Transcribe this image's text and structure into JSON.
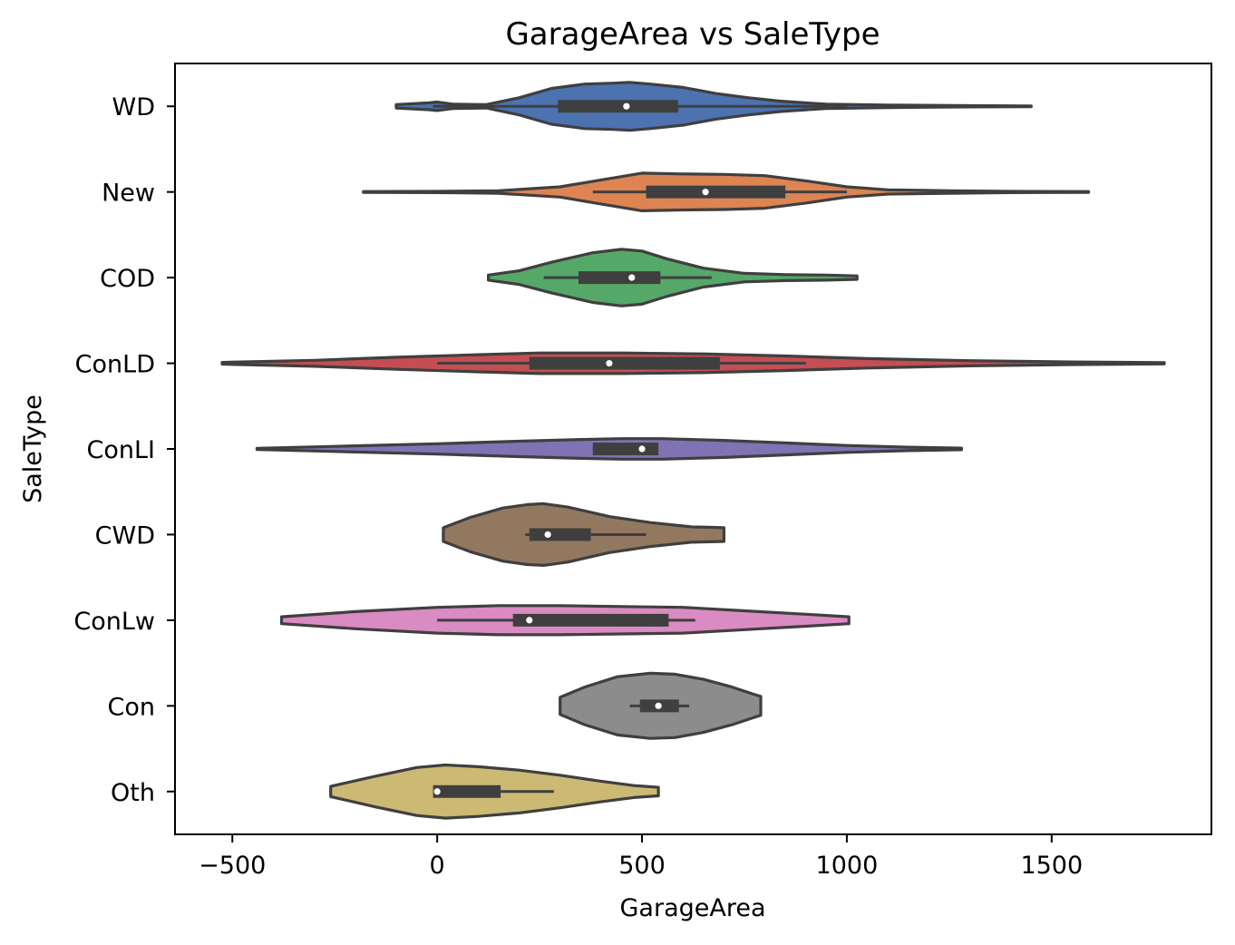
{
  "chart_data": {
    "type": "violin",
    "orientation": "horizontal",
    "title": "GarageArea vs SaleType",
    "xlabel": "GarageArea",
    "ylabel": "SaleType",
    "xlim": [
      -640,
      1890
    ],
    "xticks": [
      -500,
      0,
      500,
      1000,
      1500
    ],
    "xtick_labels": [
      "−500",
      "0",
      "500",
      "1000",
      "1500"
    ],
    "grid": false,
    "categories": [
      "WD",
      "New",
      "COD",
      "ConLD",
      "ConLI",
      "CWD",
      "ConLw",
      "Con",
      "Oth"
    ],
    "series": [
      {
        "category": "WD",
        "color": "#4c72b0",
        "range": [
          -100,
          1450
        ],
        "whiskers": [
          -10,
          1000
        ],
        "q1": 295,
        "median": 462,
        "q3": 588,
        "density": [
          [
            -100,
            0.04
          ],
          [
            -20,
            0.08
          ],
          [
            0,
            0.1
          ],
          [
            40,
            0.05
          ],
          [
            120,
            0.04
          ],
          [
            200,
            0.2
          ],
          [
            280,
            0.42
          ],
          [
            360,
            0.52
          ],
          [
            430,
            0.54
          ],
          [
            470,
            0.56
          ],
          [
            520,
            0.52
          ],
          [
            600,
            0.44
          ],
          [
            680,
            0.3
          ],
          [
            760,
            0.2
          ],
          [
            840,
            0.12
          ],
          [
            950,
            0.05
          ],
          [
            1100,
            0.03
          ],
          [
            1300,
            0.015
          ],
          [
            1450,
            0.01
          ]
        ]
      },
      {
        "category": "New",
        "color": "#dd8452",
        "range": [
          -180,
          1590
        ],
        "whiskers": [
          380,
          1000
        ],
        "q1": 510,
        "median": 655,
        "q3": 850,
        "density": [
          [
            -180,
            0.01
          ],
          [
            0,
            0.015
          ],
          [
            150,
            0.03
          ],
          [
            300,
            0.12
          ],
          [
            400,
            0.28
          ],
          [
            500,
            0.44
          ],
          [
            600,
            0.42
          ],
          [
            700,
            0.41
          ],
          [
            800,
            0.38
          ],
          [
            900,
            0.26
          ],
          [
            1000,
            0.12
          ],
          [
            1100,
            0.05
          ],
          [
            1250,
            0.03
          ],
          [
            1400,
            0.015
          ],
          [
            1590,
            0.01
          ]
        ]
      },
      {
        "category": "COD",
        "color": "#55a868",
        "range": [
          125,
          1025
        ],
        "whiskers": [
          260,
          670
        ],
        "q1": 345,
        "median": 475,
        "q3": 545,
        "density": [
          [
            125,
            0.06
          ],
          [
            200,
            0.16
          ],
          [
            280,
            0.36
          ],
          [
            380,
            0.58
          ],
          [
            450,
            0.66
          ],
          [
            500,
            0.62
          ],
          [
            560,
            0.44
          ],
          [
            650,
            0.22
          ],
          [
            750,
            0.1
          ],
          [
            850,
            0.07
          ],
          [
            950,
            0.06
          ],
          [
            1025,
            0.04
          ]
        ]
      },
      {
        "category": "ConLD",
        "color": "#c44e52",
        "range": [
          -525,
          1775
        ],
        "whiskers": [
          0,
          900
        ],
        "q1": 225,
        "median": 420,
        "q3": 690,
        "density": [
          [
            -525,
            0.02
          ],
          [
            -300,
            0.07
          ],
          [
            -100,
            0.14
          ],
          [
            100,
            0.2
          ],
          [
            250,
            0.24
          ],
          [
            450,
            0.24
          ],
          [
            650,
            0.22
          ],
          [
            850,
            0.17
          ],
          [
            1050,
            0.11
          ],
          [
            1300,
            0.06
          ],
          [
            1550,
            0.03
          ],
          [
            1775,
            0.015
          ]
        ]
      },
      {
        "category": "ConLI",
        "color": "#8172b3",
        "range": [
          -440,
          1280
        ],
        "whiskers": [
          380,
          540
        ],
        "q1": 380,
        "median": 500,
        "q3": 540,
        "density": [
          [
            -440,
            0.015
          ],
          [
            -250,
            0.06
          ],
          [
            0,
            0.12
          ],
          [
            200,
            0.18
          ],
          [
            350,
            0.22
          ],
          [
            450,
            0.24
          ],
          [
            550,
            0.24
          ],
          [
            700,
            0.2
          ],
          [
            850,
            0.14
          ],
          [
            1000,
            0.08
          ],
          [
            1150,
            0.04
          ],
          [
            1280,
            0.02
          ]
        ]
      },
      {
        "category": "CWD",
        "color": "#937860",
        "range": [
          15,
          700
        ],
        "whiskers": [
          215,
          510
        ],
        "q1": 225,
        "median": 270,
        "q3": 375,
        "density": [
          [
            15,
            0.16
          ],
          [
            80,
            0.4
          ],
          [
            160,
            0.62
          ],
          [
            220,
            0.7
          ],
          [
            260,
            0.72
          ],
          [
            320,
            0.64
          ],
          [
            420,
            0.42
          ],
          [
            520,
            0.28
          ],
          [
            620,
            0.18
          ],
          [
            700,
            0.16
          ]
        ]
      },
      {
        "category": "ConLw",
        "color": "#da8bc3",
        "range": [
          -380,
          1005
        ],
        "whiskers": [
          0,
          630
        ],
        "q1": 185,
        "median": 225,
        "q3": 565,
        "density": [
          [
            -380,
            0.08
          ],
          [
            -200,
            0.2
          ],
          [
            0,
            0.3
          ],
          [
            150,
            0.34
          ],
          [
            300,
            0.34
          ],
          [
            450,
            0.32
          ],
          [
            600,
            0.3
          ],
          [
            750,
            0.22
          ],
          [
            900,
            0.14
          ],
          [
            1005,
            0.08
          ]
        ]
      },
      {
        "category": "Con",
        "color": "#8c8c8c",
        "range": [
          300,
          790
        ],
        "whiskers": [
          470,
          615
        ],
        "q1": 495,
        "median": 540,
        "q3": 590,
        "density": [
          [
            300,
            0.2
          ],
          [
            360,
            0.44
          ],
          [
            440,
            0.68
          ],
          [
            520,
            0.76
          ],
          [
            580,
            0.74
          ],
          [
            650,
            0.62
          ],
          [
            720,
            0.44
          ],
          [
            770,
            0.28
          ],
          [
            790,
            0.22
          ]
        ]
      },
      {
        "category": "Oth",
        "color": "#ccb974",
        "range": [
          -260,
          540
        ],
        "whiskers": [
          -10,
          285
        ],
        "q1": -10,
        "median": 0,
        "q3": 155,
        "density": [
          [
            -260,
            0.12
          ],
          [
            -150,
            0.36
          ],
          [
            -50,
            0.56
          ],
          [
            20,
            0.62
          ],
          [
            100,
            0.58
          ],
          [
            200,
            0.5
          ],
          [
            300,
            0.38
          ],
          [
            400,
            0.24
          ],
          [
            480,
            0.14
          ],
          [
            540,
            0.1
          ]
        ]
      }
    ]
  }
}
